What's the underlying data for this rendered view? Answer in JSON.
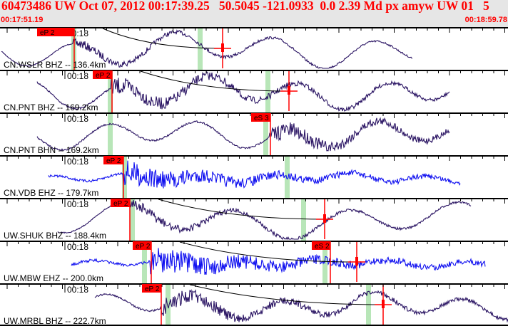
{
  "header": {
    "title": "60473486 UW Oct 07, 2012 00:17:39.25   50.5045 -121.0933  0.0 2.39 Md px amyw UW 01   5",
    "start_time": "00:17:51.19",
    "end_time": "00:18:59.78"
  },
  "colors": {
    "trace": "#2a1463",
    "trace_blue": "#1010f0",
    "pick": "#ff0000",
    "window": "#b8e6b8"
  },
  "tick_label": "00:18",
  "channels": [
    {
      "label": "CN.WSLR BHZ -- 136.4km",
      "picks": [
        "eP 2"
      ],
      "color": "trace"
    },
    {
      "label": "CN.PNT BHZ -- 169.2km",
      "picks": [
        "eP 2"
      ],
      "color": "trace"
    },
    {
      "label": "CN.PNT BHN -- 169.2km",
      "picks": [
        "eS 3"
      ],
      "color": "trace"
    },
    {
      "label": "CN.VDB EHZ -- 179.7km",
      "picks": [
        "eP 2"
      ],
      "color": "trace_blue"
    },
    {
      "label": "UW.SHUK BHZ -- 188.4km",
      "picks": [
        "eP 2"
      ],
      "color": "trace"
    },
    {
      "label": "UW.MBW EHZ -- 200.0km",
      "picks": [
        "eP 2",
        "eS 2"
      ],
      "color": "trace_blue"
    },
    {
      "label": "UW.MRBL BHZ -- 222.7km",
      "picks": [
        "eP 2"
      ],
      "color": "trace"
    }
  ]
}
